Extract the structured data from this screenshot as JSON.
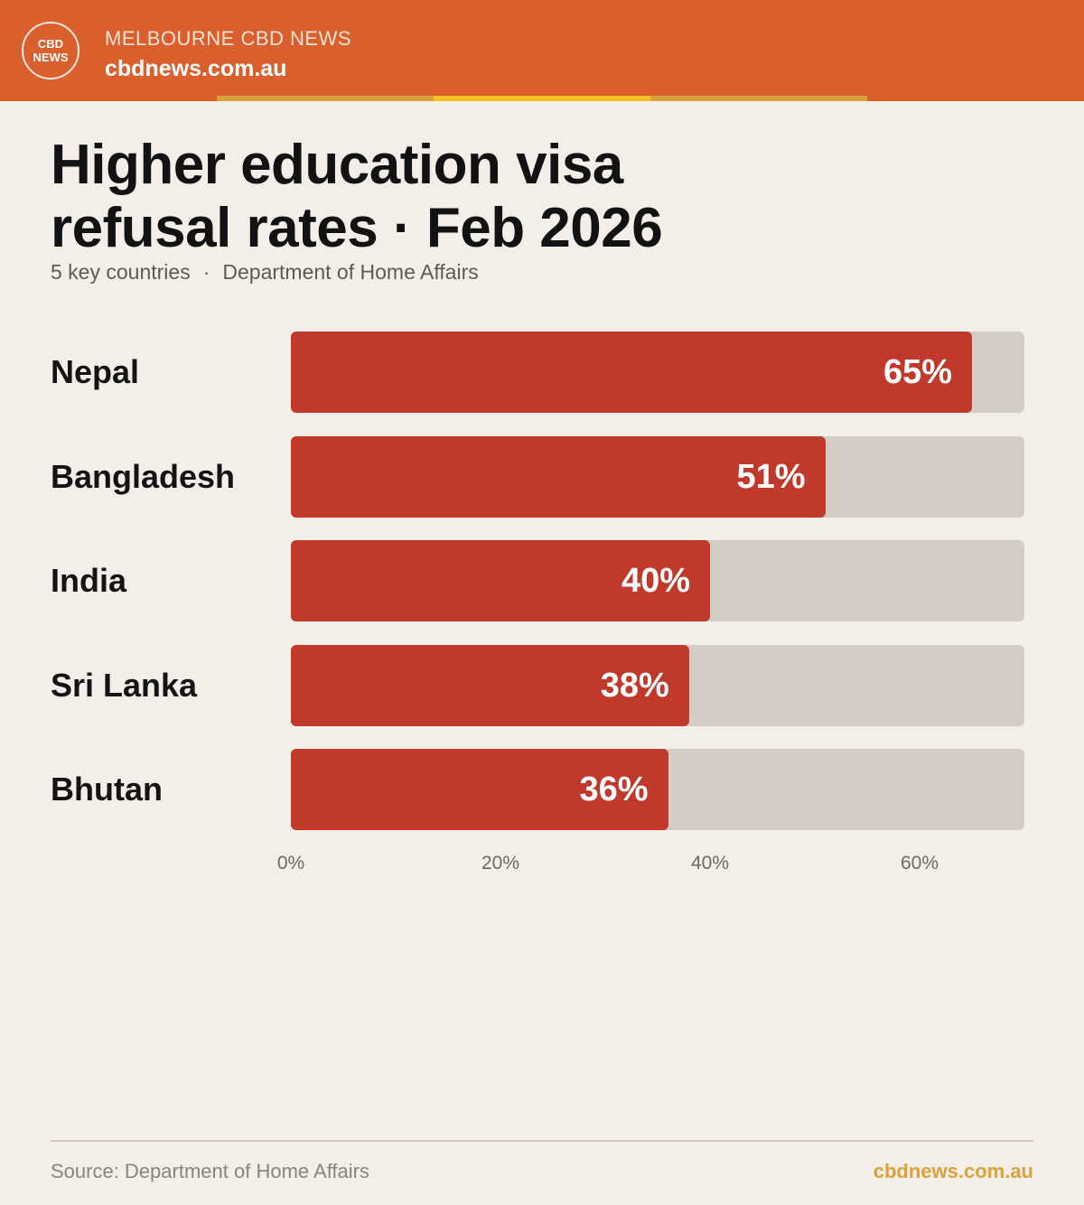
{
  "header": {
    "logo_line1": "CBD",
    "logo_line2": "NEWS",
    "brand_name": "MELBOURNE CBD NEWS",
    "brand_url": "cbdnews.com.au"
  },
  "title_line1": "Higher education visa",
  "title_line2": "refusal rates · Feb 2026",
  "subtitle": {
    "left": "5 key countries",
    "separator": "·",
    "right": "Department of Home Affairs"
  },
  "colors": {
    "header": "#d95f2d",
    "bar": "#c0392b",
    "track": "#d3cdc6",
    "accent": "#d9a23a",
    "background": "#f3eee8"
  },
  "chart_data": {
    "type": "bar",
    "orientation": "horizontal",
    "categories": [
      "Nepal",
      "Bangladesh",
      "India",
      "Sri Lanka",
      "Bhutan"
    ],
    "values": [
      65,
      51,
      40,
      38,
      36
    ],
    "value_labels": [
      "65%",
      "51%",
      "40%",
      "38%",
      "36%"
    ],
    "x_ticks": [
      "0%",
      "20%",
      "40%",
      "60%"
    ],
    "x_tick_values": [
      0,
      20,
      40,
      60
    ],
    "xlim": [
      0,
      70
    ],
    "grid": false,
    "legend": "none"
  },
  "footer": {
    "source": "Source: Department of Home Affairs",
    "url": "cbdnews.com.au"
  }
}
